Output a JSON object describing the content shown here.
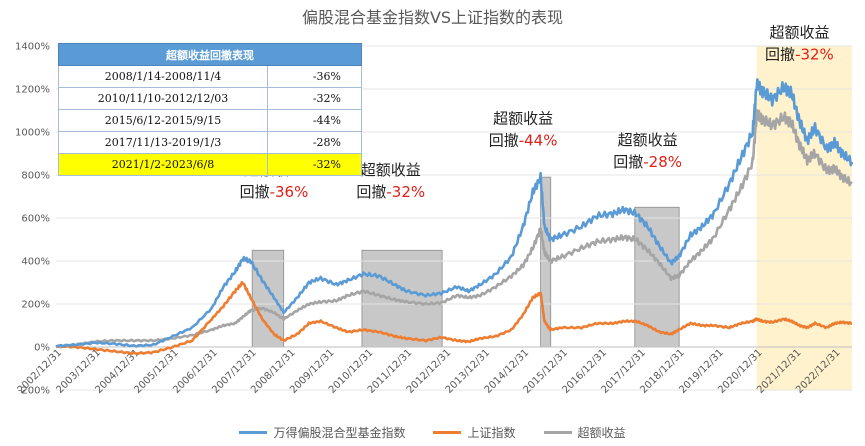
{
  "title": "偏股混合基金指数VS上证指数的表现",
  "colors": {
    "fund": "#5b9bd5",
    "sse": "#ed7d31",
    "excess": "#a5a5a5",
    "shade_gray": "#c8c8c8",
    "shade_yellow": "#fff2cc",
    "annotation_red": "#e0201a",
    "table_header": "#5b9bd5",
    "table_highlight": "#ffff00"
  },
  "drawdown_table": {
    "header": "超额收益回撤表现",
    "rows": [
      {
        "period": "2008/1/14-2008/11/4",
        "value": "-36%",
        "highlight": false
      },
      {
        "period": "2010/11/10-2012/12/03",
        "value": "-32%",
        "highlight": false
      },
      {
        "period": "2015/6/12-2015/9/15",
        "value": "-44%",
        "highlight": false
      },
      {
        "period": "2017/11/13-2019/1/3",
        "value": "-28%",
        "highlight": false
      },
      {
        "period": "2021/1/2-2023/6/8",
        "value": "-32%",
        "highlight": true
      }
    ]
  },
  "annotations": [
    {
      "line1": "超额收益",
      "line2_prefix": "回撤",
      "line2_value": "-36%",
      "anchor_year": 2008.6,
      "anchor_pct": 800
    },
    {
      "line1": "超额收益",
      "line2_prefix": "回撤",
      "line2_value": "-32%",
      "anchor_year": 2011.6,
      "anchor_pct": 800
    },
    {
      "line1": "超额收益",
      "line2_prefix": "回撤",
      "line2_value": "-44%",
      "anchor_year": 2015.0,
      "anchor_pct": 1040
    },
    {
      "line1": "超额收益",
      "line2_prefix": "回撤",
      "line2_value": "-28%",
      "anchor_year": 2018.2,
      "anchor_pct": 940
    },
    {
      "line1": "超额收益",
      "line2_prefix": "回撤",
      "line2_value": "-32%",
      "anchor_year": 2022.1,
      "anchor_pct": 1440
    }
  ],
  "legend": [
    {
      "label": "万得偏股混合型基金指数",
      "series": "fund"
    },
    {
      "label": "上证指数",
      "series": "sse"
    },
    {
      "label": "超额收益",
      "series": "excess"
    }
  ],
  "chart_data": {
    "type": "line",
    "title": "偏股混合基金指数VS上证指数的表现",
    "y_tick_labels": [
      "-200%",
      "0%",
      "200%",
      "400%",
      "600%",
      "800%",
      "1000%",
      "1200%",
      "1400%"
    ],
    "ylim": [
      -200,
      1400
    ],
    "x_tick_labels": [
      "2002/12/31",
      "2003/12/31",
      "2004/12/31",
      "2005/12/31",
      "2006/12/31",
      "2007/12/31",
      "2008/12/31",
      "2009/12/31",
      "2010/12/31",
      "2011/12/31",
      "2012/12/31",
      "2013/12/31",
      "2014/12/31",
      "2015/12/31",
      "2016/12/31",
      "2017/12/31",
      "2018/12/31",
      "2019/12/31",
      "2020/12/31",
      "2021/12/31",
      "2022/12/31"
    ],
    "xlim": [
      2003.0,
      2023.45
    ],
    "shaded_periods": [
      {
        "start": 2008.04,
        "end": 2008.85,
        "style": "gray"
      },
      {
        "start": 2010.86,
        "end": 2012.92,
        "style": "gray"
      },
      {
        "start": 2015.45,
        "end": 2015.71,
        "style": "gray"
      },
      {
        "start": 2017.87,
        "end": 2019.01,
        "style": "gray"
      },
      {
        "start": 2021.0,
        "end": 2023.45,
        "style": "yellow"
      }
    ],
    "series": [
      {
        "name": "万得偏股混合型基金指数",
        "key": "fund",
        "x": [
          2003.0,
          2003.5,
          2004.0,
          2004.5,
          2005.0,
          2005.5,
          2006.0,
          2006.5,
          2007.0,
          2007.3,
          2007.6,
          2007.8,
          2008.0,
          2008.3,
          2008.6,
          2008.85,
          2009.2,
          2009.5,
          2009.8,
          2010.2,
          2010.5,
          2010.9,
          2011.3,
          2011.7,
          2012.0,
          2012.5,
          2012.9,
          2013.3,
          2013.6,
          2013.9,
          2014.3,
          2014.7,
          2015.0,
          2015.25,
          2015.45,
          2015.55,
          2015.7,
          2016.0,
          2016.5,
          2016.9,
          2017.3,
          2017.6,
          2017.9,
          2018.2,
          2018.5,
          2018.8,
          2019.0,
          2019.3,
          2019.6,
          2019.9,
          2020.3,
          2020.6,
          2020.9,
          2021.0,
          2021.15,
          2021.4,
          2021.7,
          2021.9,
          2022.1,
          2022.3,
          2022.5,
          2022.8,
          2023.0,
          2023.2,
          2023.45
        ],
        "y": [
          5,
          10,
          20,
          15,
          5,
          10,
          50,
          90,
          180,
          280,
          350,
          410,
          400,
          310,
          230,
          160,
          230,
          300,
          320,
          290,
          310,
          340,
          330,
          290,
          260,
          240,
          250,
          280,
          260,
          290,
          340,
          420,
          560,
          720,
          790,
          560,
          500,
          520,
          560,
          610,
          620,
          640,
          620,
          560,
          470,
          390,
          420,
          520,
          560,
          620,
          760,
          880,
          1000,
          1220,
          1190,
          1150,
          1210,
          1180,
          1050,
          960,
          1020,
          920,
          950,
          900,
          860
        ]
      },
      {
        "name": "上证指数",
        "key": "sse",
        "x": [
          2003.0,
          2003.5,
          2004.0,
          2004.5,
          2005.0,
          2005.5,
          2006.0,
          2006.5,
          2007.0,
          2007.3,
          2007.6,
          2007.8,
          2008.0,
          2008.3,
          2008.6,
          2008.85,
          2009.2,
          2009.5,
          2009.8,
          2010.2,
          2010.5,
          2010.9,
          2011.3,
          2011.7,
          2012.0,
          2012.5,
          2012.9,
          2013.3,
          2013.6,
          2013.9,
          2014.3,
          2014.7,
          2015.0,
          2015.25,
          2015.45,
          2015.55,
          2015.7,
          2016.0,
          2016.5,
          2016.9,
          2017.3,
          2017.6,
          2017.9,
          2018.2,
          2018.5,
          2018.8,
          2019.0,
          2019.3,
          2019.6,
          2019.9,
          2020.3,
          2020.6,
          2020.9,
          2021.0,
          2021.15,
          2021.4,
          2021.7,
          2021.9,
          2022.1,
          2022.3,
          2022.5,
          2022.8,
          2023.0,
          2023.2,
          2023.45
        ],
        "y": [
          5,
          0,
          -10,
          -20,
          -30,
          -25,
          0,
          30,
          130,
          190,
          260,
          300,
          230,
          130,
          60,
          30,
          60,
          110,
          120,
          90,
          70,
          80,
          70,
          50,
          40,
          30,
          45,
          30,
          25,
          40,
          50,
          80,
          150,
          230,
          250,
          120,
          80,
          90,
          90,
          110,
          110,
          120,
          120,
          100,
          70,
          60,
          80,
          110,
          100,
          100,
          90,
          110,
          120,
          130,
          120,
          115,
          130,
          120,
          100,
          90,
          110,
          90,
          110,
          115,
          110
        ]
      },
      {
        "name": "超额收益",
        "key": "excess",
        "x": [
          2003.0,
          2003.5,
          2004.0,
          2004.5,
          2005.0,
          2005.5,
          2006.0,
          2006.5,
          2007.0,
          2007.3,
          2007.6,
          2007.8,
          2008.0,
          2008.3,
          2008.6,
          2008.85,
          2009.2,
          2009.5,
          2009.8,
          2010.2,
          2010.5,
          2010.9,
          2011.3,
          2011.7,
          2012.0,
          2012.5,
          2012.9,
          2013.3,
          2013.6,
          2013.9,
          2014.3,
          2014.7,
          2015.0,
          2015.25,
          2015.45,
          2015.55,
          2015.7,
          2016.0,
          2016.5,
          2016.9,
          2017.3,
          2017.6,
          2017.9,
          2018.2,
          2018.5,
          2018.8,
          2019.0,
          2019.3,
          2019.6,
          2019.9,
          2020.3,
          2020.6,
          2020.9,
          2021.0,
          2021.15,
          2021.4,
          2021.7,
          2021.9,
          2022.1,
          2022.3,
          2022.5,
          2022.8,
          2023.0,
          2023.2,
          2023.45
        ],
        "y": [
          0,
          10,
          25,
          30,
          30,
          30,
          40,
          55,
          80,
          100,
          110,
          140,
          170,
          180,
          160,
          130,
          170,
          200,
          210,
          215,
          240,
          260,
          240,
          220,
          210,
          200,
          205,
          240,
          230,
          240,
          280,
          330,
          380,
          460,
          550,
          440,
          400,
          420,
          460,
          490,
          500,
          510,
          500,
          450,
          390,
          320,
          330,
          400,
          450,
          510,
          640,
          740,
          860,
          1080,
          1060,
          1030,
          1070,
          1040,
          940,
          870,
          900,
          820,
          830,
          790,
          760
        ]
      }
    ]
  }
}
